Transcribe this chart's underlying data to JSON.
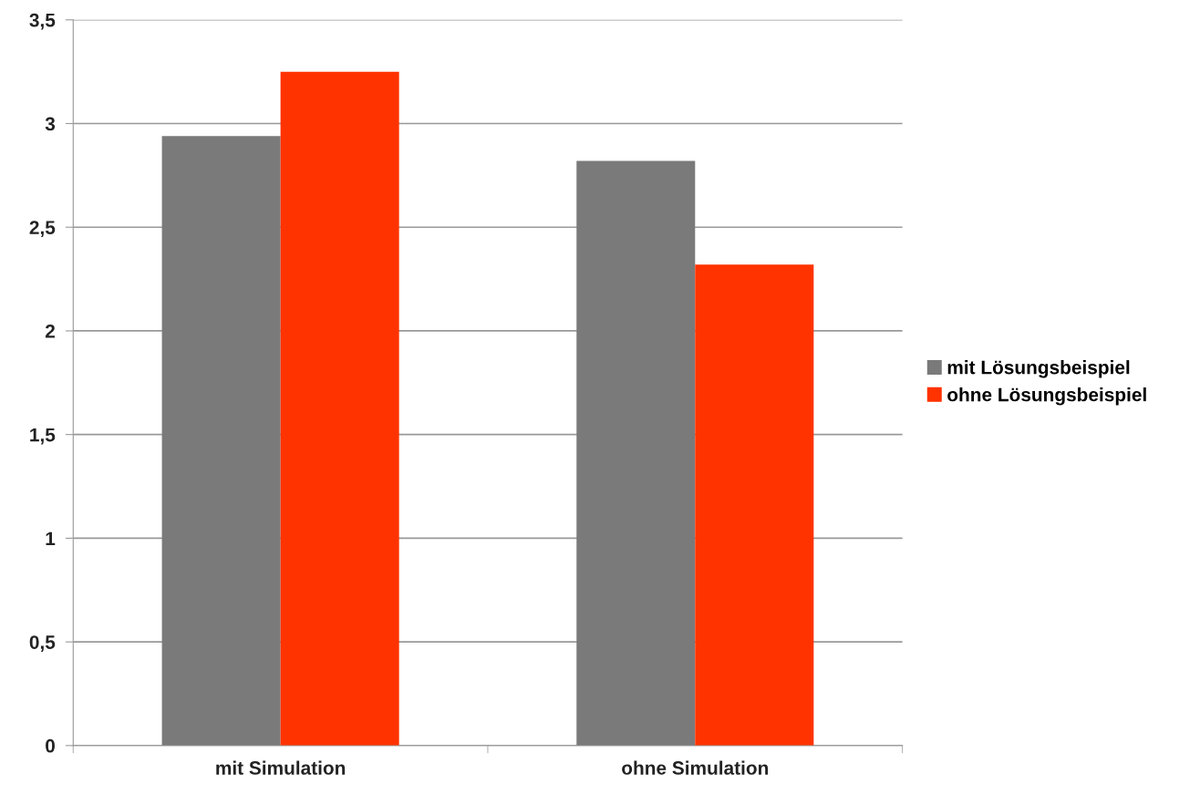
{
  "chart_data": {
    "type": "bar",
    "categories": [
      "mit Simulation",
      "ohne Simulation"
    ],
    "series": [
      {
        "name": "mit Lösungsbeispiel",
        "color": "#7a7a7a",
        "values": [
          2.94,
          2.82
        ]
      },
      {
        "name": "ohne Lösungsbeispiel",
        "color": "#ff3300",
        "values": [
          3.25,
          2.32
        ]
      }
    ],
    "ylim": [
      0,
      3.5
    ],
    "yticks": [
      {
        "value": 0,
        "label": "0"
      },
      {
        "value": 0.5,
        "label": "0,5"
      },
      {
        "value": 1,
        "label": "1"
      },
      {
        "value": 1.5,
        "label": "1,5"
      },
      {
        "value": 2,
        "label": "2"
      },
      {
        "value": 2.5,
        "label": "2,5"
      },
      {
        "value": 3,
        "label": "3"
      },
      {
        "value": 3.5,
        "label": "3,5"
      }
    ],
    "grid": "y",
    "legend": "right"
  }
}
